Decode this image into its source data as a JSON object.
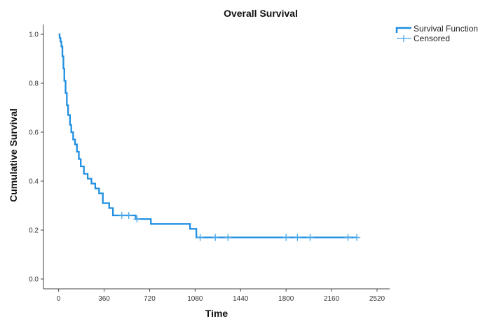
{
  "chart_data": {
    "type": "line",
    "title": "Overall Survival",
    "xlabel": "Time",
    "ylabel": "Cumulative Survival",
    "xlim": [
      -120,
      2620
    ],
    "ylim": [
      -0.04,
      1.04
    ],
    "x_ticks": [
      0,
      360,
      720,
      1080,
      1440,
      1800,
      2160,
      2520
    ],
    "x_tick_labels": [
      "0",
      "360",
      "720",
      "1080",
      "1440",
      "1800",
      "2160",
      "2520"
    ],
    "y_ticks": [
      0.0,
      0.2,
      0.4,
      0.6,
      0.8,
      1.0
    ],
    "y_tick_labels": [
      "0.0",
      "0.2",
      "0.4",
      "0.6",
      "0.8",
      "1.0"
    ],
    "grid": false,
    "legend_position": "top-right",
    "colors": {
      "line": "#1f8fe0",
      "censor": "#4aa8ea"
    },
    "legend": [
      {
        "label": "Survival Function",
        "kind": "step-line"
      },
      {
        "label": "Censored",
        "kind": "plus-marker"
      }
    ],
    "series": [
      {
        "name": "Survival Function",
        "step": "post",
        "x": [
          0,
          8,
          15,
          22,
          30,
          38,
          45,
          55,
          65,
          75,
          90,
          100,
          115,
          130,
          145,
          160,
          175,
          200,
          230,
          260,
          290,
          320,
          350,
          400,
          430,
          500,
          610,
          680,
          730,
          1040,
          1090,
          2360
        ],
        "y": [
          1.0,
          0.985,
          0.97,
          0.95,
          0.91,
          0.86,
          0.81,
          0.76,
          0.71,
          0.67,
          0.63,
          0.6,
          0.57,
          0.55,
          0.52,
          0.49,
          0.46,
          0.43,
          0.41,
          0.39,
          0.37,
          0.35,
          0.31,
          0.29,
          0.26,
          0.26,
          0.245,
          0.245,
          0.225,
          0.205,
          0.17,
          0.17
        ]
      },
      {
        "name": "Censored",
        "x": [
          500,
          555,
          620,
          1120,
          1240,
          1340,
          1800,
          1890,
          1990,
          2290,
          2360
        ],
        "y": [
          0.26,
          0.26,
          0.245,
          0.17,
          0.17,
          0.17,
          0.17,
          0.17,
          0.17,
          0.17,
          0.17
        ]
      }
    ]
  }
}
